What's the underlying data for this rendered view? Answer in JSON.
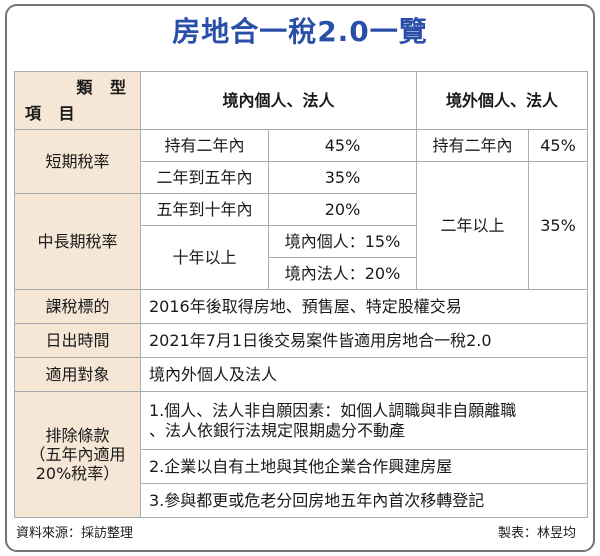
{
  "title": "房地合一稅2.0一覽",
  "header": {
    "corner_type": "類 型",
    "corner_item": "項 目",
    "domestic": "境內個人、法人",
    "foreign": "境外個人、法人"
  },
  "short_term": {
    "label": "短期稅率",
    "d_row1_period": "持有二年內",
    "d_row1_rate": "45%",
    "d_row2_period": "二年到五年內",
    "d_row2_rate": "35%",
    "f_row1_period": "持有二年內",
    "f_row1_rate": "45%"
  },
  "long_term": {
    "label": "中長期稅率",
    "d_row1_period": "五年到十年內",
    "d_row1_rate": "20%",
    "d_row2_period": "十年以上",
    "d_row2_rate_a": "境內個人：15%",
    "d_row2_rate_b": "境內法人：20%",
    "f_period": "二年以上",
    "f_rate": "35%"
  },
  "scope": {
    "label": "課稅標的",
    "value": "2016年後取得房地、預售屋、特定股權交易"
  },
  "effective": {
    "label": "日出時間",
    "value": "2021年7月1日後交易案件皆適用房地合一稅2.0"
  },
  "target": {
    "label": "適用對象",
    "value": "境內外個人及法人"
  },
  "exclusion": {
    "label_1": "排除條款",
    "label_2": "（五年內適用",
    "label_3": "20%稅率）",
    "item1_line1": "1.個人、法人非自願因素：如個人調職與非自願離職",
    "item1_line2": "、法人依銀行法規定限期處分不動產",
    "item2": "2.企業以自有土地與其他企業合作興建房屋",
    "item3": "3.參與都更或危老分回房地五年內首次移轉登記"
  },
  "footer": {
    "source": "資料來源：採訪整理",
    "credit": "製表：林昱均"
  }
}
